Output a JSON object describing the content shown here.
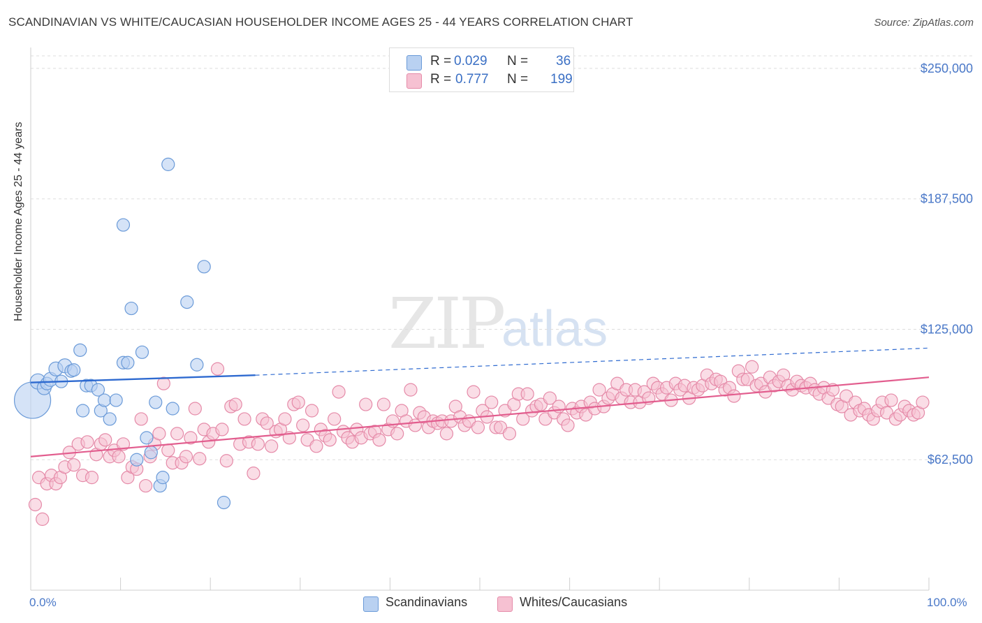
{
  "title": "SCANDINAVIAN VS WHITE/CAUCASIAN HOUSEHOLDER INCOME AGES 25 - 44 YEARS CORRELATION CHART",
  "source": "Source: ZipAtlas.com",
  "watermark": {
    "zip": "ZIP",
    "atlas": "atlas"
  },
  "legend_top": [
    {
      "r_label": "R =",
      "r_value": "0.029",
      "n_label": "N =",
      "n_value": "36"
    },
    {
      "r_label": "R =",
      "r_value": "0.777",
      "n_label": "N =",
      "n_value": "199"
    }
  ],
  "legend_bottom": [
    "Scandinavians",
    "Whites/Caucasians"
  ],
  "colors": {
    "blue_fill": "#b9d1f1",
    "blue_stroke": "#6a9ad8",
    "blue_line": "#2e6ad0",
    "pink_fill": "#f6c1d2",
    "pink_stroke": "#e58aa8",
    "pink_line": "#e25d8e",
    "axis_label": "#4a78c8",
    "grid": "#dddddd"
  },
  "chart_data": {
    "type": "scatter",
    "title": "SCANDINAVIAN VS WHITE/CAUCASIAN HOUSEHOLDER INCOME AGES 25 - 44 YEARS CORRELATION CHART",
    "xlabel": "",
    "ylabel": "Householder Income Ages 25 - 44 years",
    "xlim": [
      0,
      100
    ],
    "ylim": [
      0,
      256000
    ],
    "x_tick_labels": [
      "0.0%",
      "100.0%"
    ],
    "y_ticks": [
      62500,
      125000,
      187500,
      250000
    ],
    "y_tick_labels": [
      "$62,500",
      "$125,000",
      "$187,500",
      "$250,000"
    ],
    "grid": true,
    "series": [
      {
        "name": "Scandinavians",
        "r": 0.029,
        "n": 36,
        "trend": {
          "x": [
            0,
            25
          ],
          "y": [
            99500,
            103000
          ],
          "dashed_to": [
            100,
            116000
          ]
        },
        "points": [
          [
            0.2,
            91000,
            26
          ],
          [
            0.8,
            100000,
            11
          ],
          [
            1.5,
            97000,
            10
          ],
          [
            1.8,
            99000,
            9
          ],
          [
            2.2,
            101000,
            10
          ],
          [
            2.8,
            106000,
            10
          ],
          [
            3.4,
            100000,
            9
          ],
          [
            3.8,
            107500,
            10
          ],
          [
            4.5,
            105000,
            9
          ],
          [
            4.8,
            105500,
            9
          ],
          [
            5.5,
            115000,
            9
          ],
          [
            5.8,
            86000,
            9
          ],
          [
            6.2,
            98000,
            9
          ],
          [
            6.7,
            98000,
            9
          ],
          [
            7.5,
            96000,
            9
          ],
          [
            7.8,
            86000,
            9
          ],
          [
            8.2,
            91000,
            9
          ],
          [
            8.8,
            82000,
            9
          ],
          [
            9.5,
            91000,
            9
          ],
          [
            10.3,
            109000,
            9
          ],
          [
            10.3,
            175000,
            9
          ],
          [
            10.8,
            109000,
            9
          ],
          [
            11.2,
            135000,
            9
          ],
          [
            11.8,
            62500,
            9
          ],
          [
            12.4,
            114000,
            9
          ],
          [
            12.9,
            73000,
            9
          ],
          [
            13.4,
            66000,
            9
          ],
          [
            13.9,
            90000,
            9
          ],
          [
            14.4,
            50000,
            9
          ],
          [
            14.7,
            54000,
            9
          ],
          [
            15.3,
            204000,
            9
          ],
          [
            15.8,
            87000,
            9
          ],
          [
            17.4,
            138000,
            9
          ],
          [
            18.5,
            108000,
            9
          ],
          [
            19.3,
            155000,
            9
          ],
          [
            21.5,
            42000,
            9
          ]
        ]
      },
      {
        "name": "Whites/Caucasians",
        "r": 0.777,
        "n": 199,
        "trend": {
          "x": [
            0,
            100
          ],
          "y": [
            64000,
            102000
          ]
        },
        "points": [
          [
            0.5,
            41000
          ],
          [
            0.9,
            54000
          ],
          [
            1.3,
            34000
          ],
          [
            1.8,
            51000
          ],
          [
            2.3,
            55000
          ],
          [
            2.8,
            51000
          ],
          [
            3.3,
            54000
          ],
          [
            3.8,
            59000
          ],
          [
            4.3,
            66000
          ],
          [
            4.8,
            60000
          ],
          [
            5.3,
            70000
          ],
          [
            5.8,
            55000
          ],
          [
            6.3,
            71000
          ],
          [
            6.8,
            54000
          ],
          [
            7.3,
            65000
          ],
          [
            7.8,
            70000
          ],
          [
            8.3,
            72000
          ],
          [
            8.8,
            64000
          ],
          [
            9.3,
            67000
          ],
          [
            9.8,
            64000
          ],
          [
            10.3,
            70000
          ],
          [
            10.8,
            54000
          ],
          [
            11.3,
            59000
          ],
          [
            11.8,
            58000
          ],
          [
            12.3,
            82000
          ],
          [
            12.8,
            50000
          ],
          [
            13.3,
            64000
          ],
          [
            13.8,
            70000
          ],
          [
            14.3,
            75000
          ],
          [
            14.8,
            99000
          ],
          [
            15.3,
            67000
          ],
          [
            15.8,
            61000
          ],
          [
            16.3,
            75000
          ],
          [
            16.8,
            61000
          ],
          [
            17.3,
            64000
          ],
          [
            17.8,
            73000
          ],
          [
            18.3,
            87000
          ],
          [
            18.8,
            63000
          ],
          [
            19.3,
            77000
          ],
          [
            19.8,
            71000
          ],
          [
            20.3,
            75000
          ],
          [
            20.8,
            106000
          ],
          [
            21.3,
            77000
          ],
          [
            21.8,
            62000
          ],
          [
            22.3,
            88000
          ],
          [
            22.8,
            89000
          ],
          [
            23.3,
            70000
          ],
          [
            23.8,
            82000
          ],
          [
            24.3,
            71000
          ],
          [
            24.8,
            56000
          ],
          [
            25.3,
            70000
          ],
          [
            25.8,
            82000
          ],
          [
            26.3,
            80000
          ],
          [
            26.8,
            69000
          ],
          [
            27.3,
            76000
          ],
          [
            27.8,
            77000
          ],
          [
            28.3,
            82000
          ],
          [
            28.8,
            73000
          ],
          [
            29.3,
            89000
          ],
          [
            29.8,
            90000
          ],
          [
            30.3,
            79000
          ],
          [
            30.8,
            72000
          ],
          [
            31.3,
            86000
          ],
          [
            31.8,
            69000
          ],
          [
            32.3,
            77000
          ],
          [
            32.8,
            74000
          ],
          [
            33.3,
            72000
          ],
          [
            33.8,
            82000
          ],
          [
            34.3,
            95000
          ],
          [
            34.8,
            76000
          ],
          [
            35.3,
            73000
          ],
          [
            35.8,
            71000
          ],
          [
            36.3,
            77000
          ],
          [
            36.8,
            73000
          ],
          [
            37.3,
            89000
          ],
          [
            37.8,
            75000
          ],
          [
            38.3,
            76000
          ],
          [
            38.8,
            72000
          ],
          [
            39.3,
            89000
          ],
          [
            39.8,
            77000
          ],
          [
            40.3,
            81000
          ],
          [
            40.8,
            75000
          ],
          [
            41.3,
            86000
          ],
          [
            41.8,
            81000
          ],
          [
            42.3,
            96000
          ],
          [
            42.8,
            79000
          ],
          [
            43.3,
            85000
          ],
          [
            43.8,
            83000
          ],
          [
            44.3,
            78000
          ],
          [
            44.8,
            81000
          ],
          [
            45.3,
            80000
          ],
          [
            45.8,
            81000
          ],
          [
            46.3,
            75000
          ],
          [
            46.8,
            81000
          ],
          [
            47.3,
            88000
          ],
          [
            47.8,
            83000
          ],
          [
            48.3,
            79000
          ],
          [
            48.8,
            81000
          ],
          [
            49.3,
            95000
          ],
          [
            49.8,
            78000
          ],
          [
            50.3,
            86000
          ],
          [
            50.8,
            83000
          ],
          [
            51.3,
            90000
          ],
          [
            51.8,
            78000
          ],
          [
            52.3,
            78000
          ],
          [
            52.8,
            86000
          ],
          [
            53.3,
            75000
          ],
          [
            53.8,
            89000
          ],
          [
            54.3,
            94000
          ],
          [
            54.8,
            82000
          ],
          [
            55.3,
            94000
          ],
          [
            55.8,
            86000
          ],
          [
            56.3,
            88000
          ],
          [
            56.8,
            89000
          ],
          [
            57.3,
            82000
          ],
          [
            57.8,
            92000
          ],
          [
            58.3,
            85000
          ],
          [
            58.8,
            88000
          ],
          [
            59.3,
            82000
          ],
          [
            59.8,
            79000
          ],
          [
            60.3,
            87000
          ],
          [
            60.8,
            85000
          ],
          [
            61.3,
            88000
          ],
          [
            61.8,
            84000
          ],
          [
            62.3,
            90000
          ],
          [
            62.8,
            87000
          ],
          [
            63.3,
            96000
          ],
          [
            63.8,
            88000
          ],
          [
            64.3,
            92000
          ],
          [
            64.8,
            94000
          ],
          [
            65.3,
            99000
          ],
          [
            65.8,
            92000
          ],
          [
            66.3,
            96000
          ],
          [
            66.8,
            90000
          ],
          [
            67.3,
            96000
          ],
          [
            67.8,
            90000
          ],
          [
            68.3,
            95000
          ],
          [
            68.8,
            92000
          ],
          [
            69.3,
            99000
          ],
          [
            69.8,
            97000
          ],
          [
            70.3,
            94000
          ],
          [
            70.8,
            97000
          ],
          [
            71.3,
            91000
          ],
          [
            71.8,
            99000
          ],
          [
            72.3,
            96000
          ],
          [
            72.8,
            98000
          ],
          [
            73.3,
            92000
          ],
          [
            73.8,
            97000
          ],
          [
            74.3,
            96000
          ],
          [
            74.8,
            98000
          ],
          [
            75.3,
            103000
          ],
          [
            75.8,
            99000
          ],
          [
            76.3,
            101000
          ],
          [
            76.8,
            100000
          ],
          [
            77.3,
            96000
          ],
          [
            77.8,
            97000
          ],
          [
            78.3,
            93000
          ],
          [
            78.8,
            105000
          ],
          [
            79.3,
            101000
          ],
          [
            79.8,
            101000
          ],
          [
            80.3,
            107000
          ],
          [
            80.8,
            98000
          ],
          [
            81.3,
            99000
          ],
          [
            81.8,
            95000
          ],
          [
            82.3,
            102000
          ],
          [
            82.8,
            98000
          ],
          [
            83.3,
            100000
          ],
          [
            83.8,
            103000
          ],
          [
            84.3,
            98000
          ],
          [
            84.8,
            96000
          ],
          [
            85.3,
            100000
          ],
          [
            85.8,
            98000
          ],
          [
            86.3,
            97000
          ],
          [
            86.8,
            99000
          ],
          [
            87.3,
            96000
          ],
          [
            87.8,
            94000
          ],
          [
            88.3,
            97000
          ],
          [
            88.8,
            92000
          ],
          [
            89.3,
            96000
          ],
          [
            89.8,
            89000
          ],
          [
            90.3,
            88000
          ],
          [
            90.8,
            93000
          ],
          [
            91.3,
            84000
          ],
          [
            91.8,
            90000
          ],
          [
            92.3,
            86000
          ],
          [
            92.8,
            87000
          ],
          [
            93.3,
            84000
          ],
          [
            93.8,
            82000
          ],
          [
            94.3,
            86000
          ],
          [
            94.8,
            90000
          ],
          [
            95.3,
            85000
          ],
          [
            95.8,
            91000
          ],
          [
            96.3,
            82000
          ],
          [
            96.8,
            84000
          ],
          [
            97.3,
            88000
          ],
          [
            97.8,
            86000
          ],
          [
            98.3,
            84000
          ],
          [
            98.8,
            85000
          ],
          [
            99.3,
            90000
          ]
        ]
      }
    ]
  }
}
